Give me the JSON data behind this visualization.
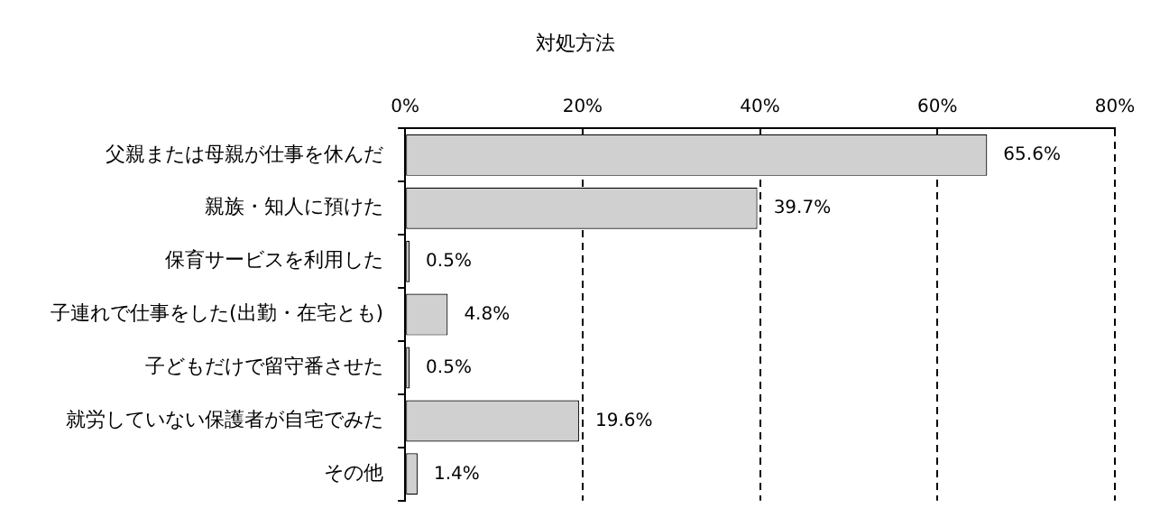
{
  "chart_data": {
    "type": "bar",
    "orientation": "horizontal",
    "title": "対処方法",
    "categories": [
      "父親または母親が仕事を休んだ",
      "親族・知人に預けた",
      "保育サービスを利用した",
      "子連れで仕事をした(出勤・在宅とも)",
      "子どもだけで留守番させた",
      "就労していない保護者が自宅でみた",
      "その他"
    ],
    "values": [
      65.6,
      39.7,
      0.5,
      4.8,
      0.5,
      19.6,
      1.4
    ],
    "value_labels": [
      "65.6%",
      "39.7%",
      "0.5%",
      "4.8%",
      "0.5%",
      "19.6%",
      "1.4%"
    ],
    "color": "#d0d0d0",
    "xlim": [
      0,
      80
    ],
    "xticks": [
      {
        "value": 0,
        "label": "0%"
      },
      {
        "value": 20,
        "label": "20%"
      },
      {
        "value": 40,
        "label": "40%"
      },
      {
        "value": 60,
        "label": "60%"
      },
      {
        "value": 80,
        "label": "80%"
      }
    ],
    "grid": "x",
    "legend": false
  }
}
